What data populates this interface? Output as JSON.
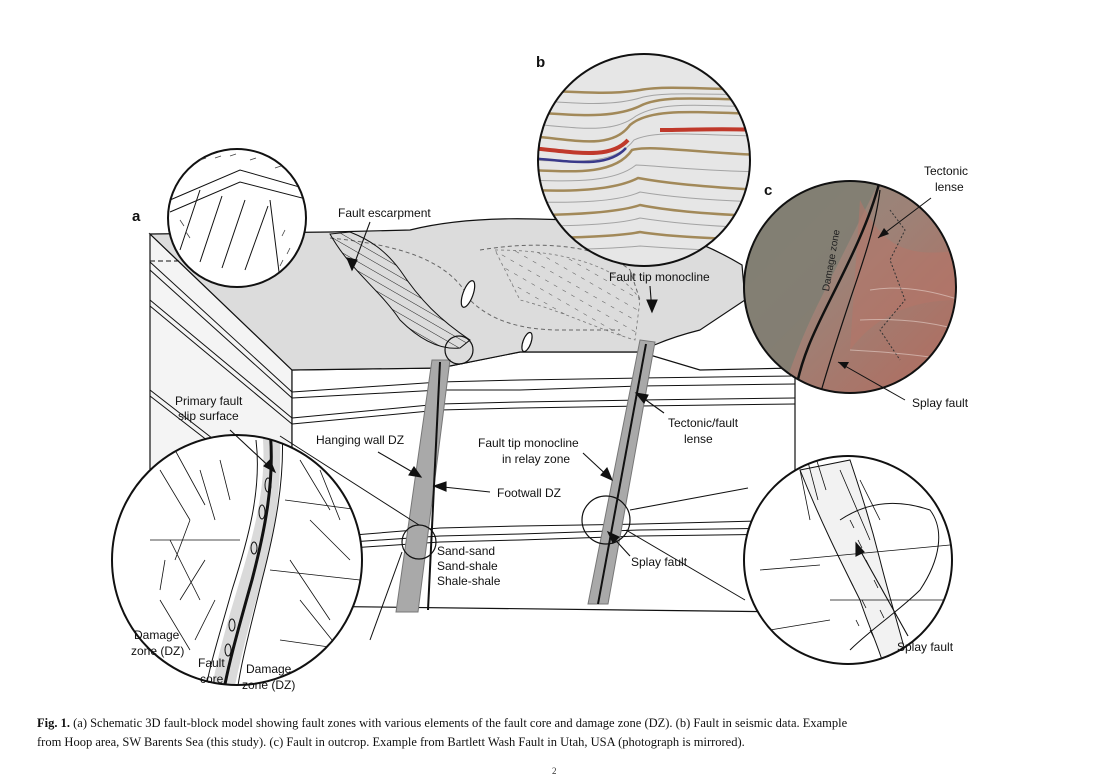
{
  "panels": {
    "a": "a",
    "b": "b",
    "c": "c"
  },
  "labels": {
    "fault_escarpment": "Fault escarpment",
    "fault_tip_monocline": "Fault tip monocline",
    "tectonic_lense_1": "Tectonic",
    "tectonic_lense_2": "lense",
    "damage_zone_photo": "Damage zone",
    "splay_fault_photo": "Splay fault",
    "primary_fault_1": "Primary fault",
    "primary_fault_2": "slip surface",
    "hanging_wall_dz": "Hanging wall DZ",
    "footwall_dz": "Footwall DZ",
    "relay_1": "Fault tip monocline",
    "relay_2": "in relay zone",
    "tectonic_fault_lense_1": "Tectonic/fault",
    "tectonic_fault_lense_2": "lense",
    "sand_sand": "Sand-sand",
    "sand_shale": "Sand-shale",
    "shale_shale": "Shale-shale",
    "splay_fault_block": "Splay fault",
    "splay_fault_detail": "Splay fault",
    "damage_zone_left_1": "Damage",
    "damage_zone_left_2": "zone (DZ)",
    "fault_core_1": "Fault",
    "fault_core_2": "core",
    "damage_zone_right_1": "Damage",
    "damage_zone_right_2": "zone (DZ)"
  },
  "caption": {
    "fig_label": "Fig. 1.",
    "line1": " (a) Schematic 3D fault-block model showing fault zones with various elements of the fault core and damage zone (DZ). (b) Fault in seismic data. Example",
    "line2": "from Hoop area, SW Barents Sea (this study). (c) Fault in outcrop. Example from Bartlett Wash Fault in Utah, USA (photograph is mirrored)."
  },
  "footnote": "2",
  "colors": {
    "ink": "#111111",
    "top_surface": "#d9d9d9",
    "fault_gray": "#a9a9a9",
    "seismic_red": "#c0392b",
    "seismic_brown": "#8b6a2a",
    "outcrop_red": "#a8675a"
  }
}
